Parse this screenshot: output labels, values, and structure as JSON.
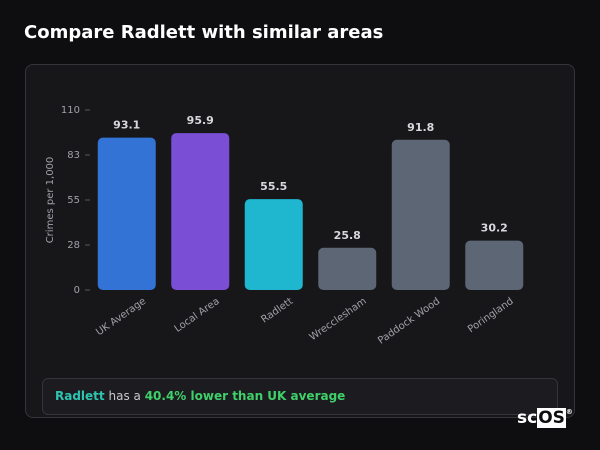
{
  "title": "Compare Radlett with similar areas",
  "chart_data": {
    "type": "bar",
    "y_label": "Crimes per 1,000",
    "categories": [
      "UK Average",
      "Local Area",
      "Radlett",
      "Wrecclesham",
      "Paddock Wood",
      "Poringland"
    ],
    "values": [
      93.1,
      95.9,
      55.5,
      25.8,
      91.8,
      30.2
    ],
    "colors": [
      "#3373d6",
      "#7a4fd6",
      "#1fb6d0",
      "#5d6675",
      "#5d6675",
      "#5d6675"
    ],
    "ylim": [
      0,
      110
    ],
    "yticks": [
      0,
      {
        "value": 27.5,
        "label": "28"
      },
      55,
      {
        "value": 82.5,
        "label": "83"
      },
      110
    ]
  },
  "summary": {
    "area": "Radlett",
    "text": "has a",
    "highlight": "40.4% lower than UK average"
  },
  "logo": {
    "prefix": "sc",
    "boxed": "OS",
    "mark": "®"
  }
}
